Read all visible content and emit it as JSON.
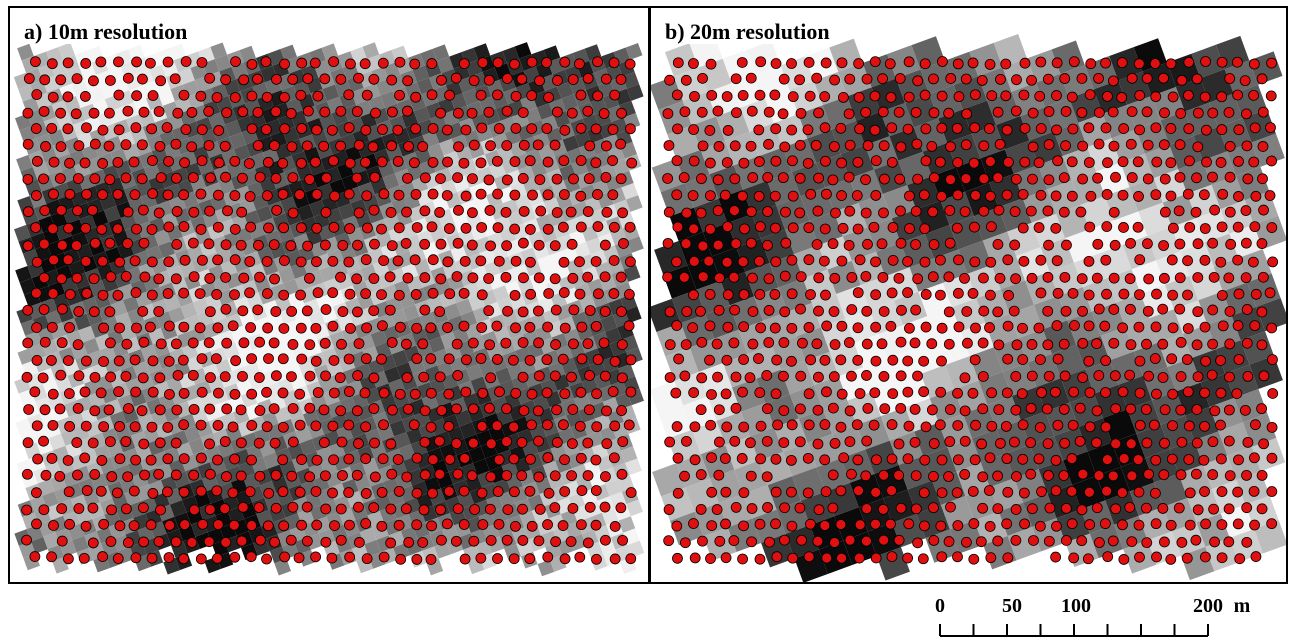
{
  "panels": [
    {
      "label": "a) 10m resolution",
      "resolution_m": 10
    },
    {
      "label": "b) 20m resolution",
      "resolution_m": 20
    }
  ],
  "raster": {
    "colormap": "grayscale",
    "dark_color": "#000000",
    "light_color": "#ffffff"
  },
  "sample_points": {
    "fill_color": "#e01010",
    "stroke_color": "#000000",
    "symbol": "circle"
  },
  "scale_bar": {
    "tick_labels": [
      "0",
      "50",
      "100",
      "200"
    ],
    "tick_values": [
      0,
      50,
      100,
      200
    ],
    "unit": "m",
    "minor_divisions": 8
  }
}
